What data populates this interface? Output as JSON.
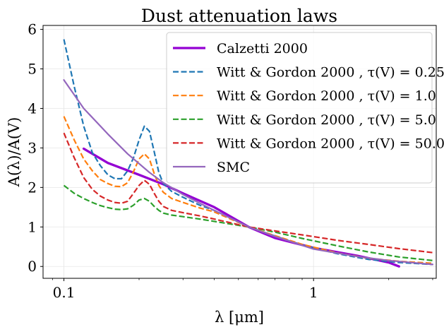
{
  "chart_data": {
    "type": "line",
    "title": "Dust attenuation laws",
    "xlabel": "λ [μm]",
    "ylabel": "A(λ)/A(V)",
    "xscale": "log",
    "xlim": [
      0.0825,
      3.1
    ],
    "ylim": [
      -0.3,
      6.1
    ],
    "xticks": [
      {
        "value": 0.1,
        "label": "0.1"
      },
      {
        "value": 1,
        "label": "1"
      }
    ],
    "yticks": [
      0,
      1,
      2,
      3,
      4,
      5,
      6
    ],
    "grid": true,
    "legend_position": "upper right",
    "series": [
      {
        "name": "Calzetti 2000",
        "color": "#9400d3",
        "style": "solid",
        "width": "thick",
        "x": [
          0.12,
          0.15,
          0.2,
          0.25,
          0.3,
          0.4,
          0.55,
          0.7,
          1.0,
          1.5,
          2.0,
          2.2
        ],
        "y": [
          2.98,
          2.62,
          2.32,
          2.08,
          1.85,
          1.5,
          1.0,
          0.72,
          0.47,
          0.27,
          0.1,
          0.0
        ]
      },
      {
        "name": "Witt & Gordon 2000 , τ(V) = 0.25",
        "color": "#1f77b4",
        "style": "dashed",
        "x": [
          0.1,
          0.11,
          0.12,
          0.13,
          0.14,
          0.15,
          0.16,
          0.17,
          0.18,
          0.19,
          0.2,
          0.21,
          0.22,
          0.23,
          0.24,
          0.25,
          0.27,
          0.3,
          0.35,
          0.4,
          0.55,
          0.7,
          0.9,
          1.25,
          1.65,
          2.2,
          3.0
        ],
        "y": [
          5.75,
          4.55,
          3.55,
          2.88,
          2.55,
          2.32,
          2.22,
          2.22,
          2.42,
          2.75,
          3.2,
          3.55,
          3.42,
          2.9,
          2.38,
          2.1,
          1.9,
          1.75,
          1.55,
          1.42,
          1.0,
          0.77,
          0.54,
          0.32,
          0.18,
          0.1,
          0.05
        ]
      },
      {
        "name": "Witt & Gordon 2000 , τ(V) = 1.0",
        "color": "#ff7f0e",
        "style": "dashed",
        "x": [
          0.1,
          0.11,
          0.12,
          0.13,
          0.14,
          0.15,
          0.16,
          0.17,
          0.18,
          0.19,
          0.2,
          0.21,
          0.22,
          0.23,
          0.24,
          0.25,
          0.27,
          0.3,
          0.35,
          0.4,
          0.55,
          0.7,
          0.9,
          1.25,
          1.65,
          2.2,
          3.0
        ],
        "y": [
          3.8,
          3.2,
          2.72,
          2.42,
          2.2,
          2.1,
          2.03,
          2.02,
          2.12,
          2.4,
          2.72,
          2.85,
          2.72,
          2.35,
          2.05,
          1.88,
          1.72,
          1.62,
          1.48,
          1.38,
          1.0,
          0.78,
          0.56,
          0.34,
          0.21,
          0.13,
          0.08
        ]
      },
      {
        "name": "Witt & Gordon 2000 , τ(V) = 5.0",
        "color": "#2ca02c",
        "style": "dashed",
        "x": [
          0.1,
          0.11,
          0.12,
          0.13,
          0.14,
          0.15,
          0.16,
          0.17,
          0.18,
          0.19,
          0.2,
          0.21,
          0.22,
          0.23,
          0.24,
          0.25,
          0.27,
          0.3,
          0.35,
          0.4,
          0.55,
          0.7,
          0.9,
          1.25,
          1.65,
          2.2,
          3.0
        ],
        "y": [
          2.05,
          1.85,
          1.72,
          1.62,
          1.54,
          1.49,
          1.45,
          1.44,
          1.46,
          1.55,
          1.68,
          1.72,
          1.65,
          1.52,
          1.42,
          1.35,
          1.3,
          1.26,
          1.2,
          1.14,
          1.0,
          0.87,
          0.71,
          0.52,
          0.37,
          0.24,
          0.15
        ]
      },
      {
        "name": "Witt & Gordon 2000 , τ(V) = 50.0",
        "color": "#d62728",
        "style": "dashed",
        "x": [
          0.1,
          0.11,
          0.12,
          0.13,
          0.14,
          0.15,
          0.16,
          0.17,
          0.18,
          0.19,
          0.2,
          0.21,
          0.22,
          0.23,
          0.24,
          0.25,
          0.27,
          0.3,
          0.35,
          0.4,
          0.55,
          0.7,
          0.9,
          1.25,
          1.65,
          2.2,
          3.0
        ],
        "y": [
          3.38,
          2.75,
          2.25,
          1.95,
          1.78,
          1.68,
          1.62,
          1.6,
          1.65,
          1.85,
          2.05,
          2.18,
          2.08,
          1.85,
          1.65,
          1.52,
          1.42,
          1.36,
          1.28,
          1.2,
          1.0,
          0.9,
          0.8,
          0.66,
          0.56,
          0.45,
          0.35
        ]
      },
      {
        "name": "SMC",
        "color": "#9467bd",
        "style": "solid",
        "x": [
          0.1,
          0.12,
          0.15,
          0.18,
          0.22,
          0.25,
          0.3,
          0.35,
          0.4,
          0.55,
          0.7,
          1.0,
          1.5,
          2.0,
          3.0
        ],
        "y": [
          4.72,
          4.0,
          3.35,
          2.85,
          2.38,
          2.12,
          1.82,
          1.6,
          1.42,
          1.0,
          0.76,
          0.44,
          0.25,
          0.15,
          0.05
        ]
      }
    ]
  }
}
